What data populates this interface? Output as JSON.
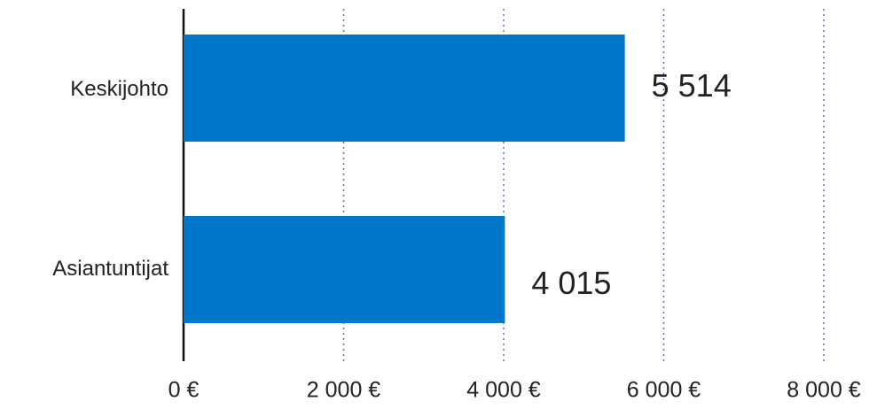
{
  "chart_data": {
    "type": "bar",
    "orientation": "horizontal",
    "categories": [
      "Keskijohto",
      "Asiantuntijat"
    ],
    "values": [
      5514,
      4015
    ],
    "value_labels": [
      "5 514",
      "4 015"
    ],
    "color": "#0077c8",
    "xlim": [
      0,
      8000
    ],
    "xticks": [
      {
        "value": 0,
        "label": "0 €"
      },
      {
        "value": 2000,
        "label": "2 000 €"
      },
      {
        "value": 4000,
        "label": "4 000 €"
      },
      {
        "value": 6000,
        "label": "6 000 €"
      },
      {
        "value": 8000,
        "label": "8 000 €"
      }
    ],
    "grid": true
  }
}
